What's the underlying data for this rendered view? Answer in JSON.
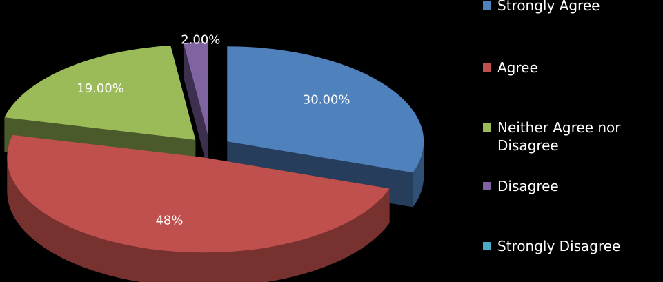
{
  "chart_data": {
    "type": "pie",
    "categories": [
      "Strongly Agree",
      "Agree",
      "Neither Agree nor Disagree",
      "Disagree",
      "Strongly Disagree"
    ],
    "values": [
      30,
      48,
      19,
      2,
      0
    ],
    "data_labels": [
      "30.00%",
      "48%",
      "19.00%",
      "2.00%",
      ""
    ],
    "colors": [
      "#4f81bd",
      "#c0504d",
      "#9bbb59",
      "#8064a2",
      "#4bacc6"
    ],
    "style": "3d-exploded",
    "legend_position": "right",
    "background": "#000000"
  },
  "legend": {
    "items": [
      {
        "label": "Strongly Agree",
        "color": "#4f81bd"
      },
      {
        "label": "Agree",
        "color": "#c0504d"
      },
      {
        "label": "Neither Agree nor Disagree",
        "color": "#9bbb59"
      },
      {
        "label": "Disagree",
        "color": "#8064a2"
      },
      {
        "label": "Strongly Disagree",
        "color": "#4bacc6"
      }
    ]
  }
}
